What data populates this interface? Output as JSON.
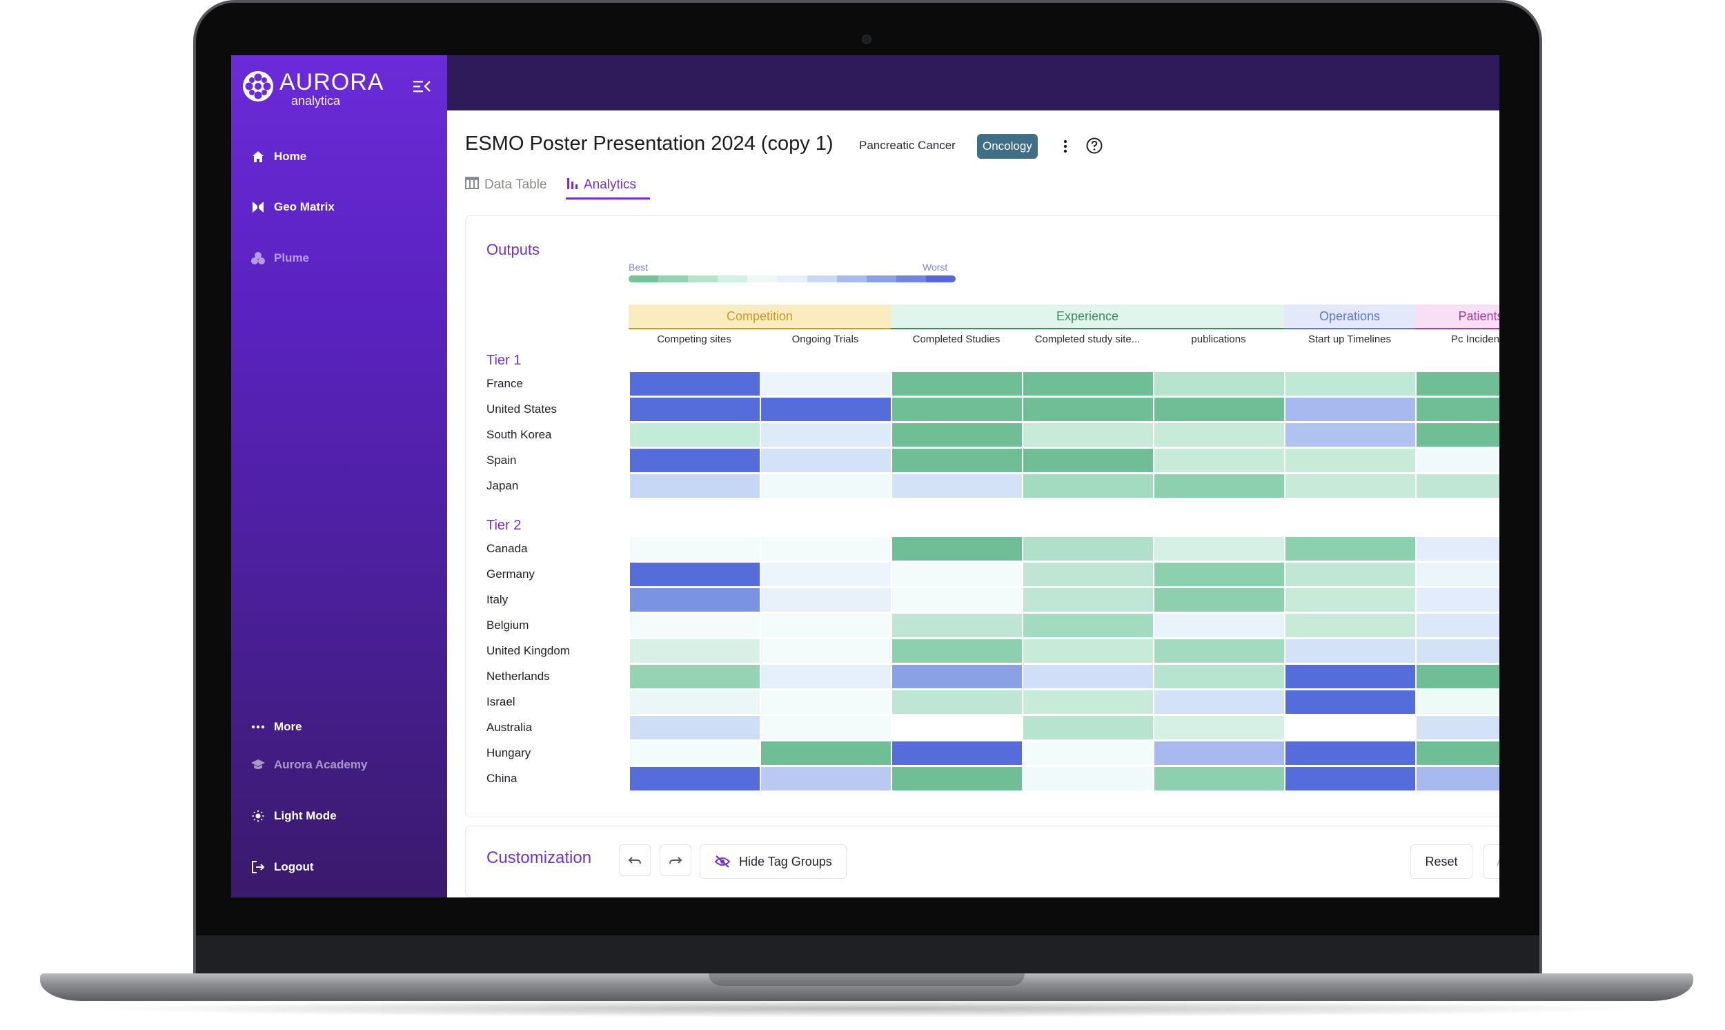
{
  "app": {
    "logo_word": "AURORA",
    "logo_sub": "analytica"
  },
  "sidebar": {
    "items": [
      {
        "label": "Home",
        "icon": "home-icon"
      },
      {
        "label": "Geo Matrix",
        "icon": "geo-matrix-icon"
      },
      {
        "label": "Plume",
        "icon": "plume-icon"
      }
    ],
    "bottom_items": [
      {
        "label": "More",
        "icon": "more-dots-icon"
      },
      {
        "label": "Aurora Academy",
        "icon": "graduation-cap-icon"
      },
      {
        "label": "Light Mode",
        "icon": "sun-icon"
      },
      {
        "label": "Logout",
        "icon": "logout-icon"
      }
    ]
  },
  "header": {
    "title": "ESMO Poster Presentation 2024 (copy 1)",
    "tag_text": "Pancreatic Cancer",
    "tag_badge": "Oncology"
  },
  "tabs": [
    {
      "label": "Data Table",
      "active": false
    },
    {
      "label": "Analytics",
      "active": true
    }
  ],
  "outputs": {
    "title": "Outputs",
    "legend_best": "Best",
    "legend_worst": "Worst",
    "legend_colors": [
      "#74c39b",
      "#93d3b4",
      "#b5e4cd",
      "#d3f1e3",
      "#eef9f6",
      "#e6effa",
      "#c9d9f5",
      "#a7bcee",
      "#8aa1e6",
      "#6f86e0",
      "#5468da"
    ],
    "groups": [
      {
        "label": "Competition",
        "bg": "#fbecc0",
        "fg": "#c89a2c",
        "span": 2
      },
      {
        "label": "Experience",
        "bg": "#e0f6ec",
        "fg": "#3c8a64",
        "span": 3
      },
      {
        "label": "Operations",
        "bg": "#e4e8fb",
        "fg": "#5b78d8",
        "span": 1
      },
      {
        "label": "Patients",
        "bg": "#f8dff5",
        "fg": "#a23f98",
        "span": 1
      }
    ],
    "columns": [
      "Competing sites",
      "Ongoing Trials",
      "Completed Studies",
      "Completed study site...",
      "publications",
      "Start up Timelines",
      "Pc Incidence"
    ],
    "tiers": [
      {
        "title": "Tier 1",
        "rows": [
          {
            "name": "France",
            "cells": [
              "#556ddb",
              "#ebf5fb",
              "#6fbe96",
              "#6fbe96",
              "#b7e4cf",
              "#bfe8d6",
              "#6fbe96"
            ]
          },
          {
            "name": "United States",
            "cells": [
              "#556ddb",
              "#556ddb",
              "#6fbe96",
              "#6fbe96",
              "#6fbe96",
              "#a7b9ee",
              "#6fbe96"
            ]
          },
          {
            "name": "South Korea",
            "cells": [
              "#c3ecd8",
              "#ddeaf8",
              "#6fbe96",
              "#c7ead9",
              "#c7ead9",
              "#b0c2f0",
              "#6fbe96"
            ]
          },
          {
            "name": "Spain",
            "cells": [
              "#556ddb",
              "#d3e2f7",
              "#6fbe96",
              "#6fbe96",
              "#c7ead9",
              "#c7ead9",
              "#f1fafb"
            ]
          },
          {
            "name": "Japan",
            "cells": [
              "#c5d7f4",
              "#f1fafb",
              "#d4e2f8",
              "#a3dbc0",
              "#8dd0af",
              "#c7ead9",
              "#c0e6d5"
            ]
          }
        ]
      },
      {
        "title": "Tier 2",
        "rows": [
          {
            "name": "Canada",
            "cells": [
              "#f3fbfb",
              "#f3fbfb",
              "#6fbe96",
              "#b0e0c9",
              "#d6f0e5",
              "#8dd0af",
              "#e2ecfa"
            ]
          },
          {
            "name": "Germany",
            "cells": [
              "#556ddb",
              "#ecf5fb",
              "#f3fbfb",
              "#bfe6d4",
              "#8dd0af",
              "#c0e6d5",
              "#ecf6fa"
            ]
          },
          {
            "name": "Italy",
            "cells": [
              "#7a93e3",
              "#e8f1fa",
              "#f3fbfb",
              "#bfe6d4",
              "#8dd0af",
              "#c7ead9",
              "#e2ecfa"
            ]
          },
          {
            "name": "Belgium",
            "cells": [
              "#f3fbfb",
              "#f3fbfb",
              "#bfe6d4",
              "#a3dbc0",
              "#e8f3fa",
              "#c7ead9",
              "#dce8f9"
            ]
          },
          {
            "name": "United Kingdom",
            "cells": [
              "#d8f0e5",
              "#f3fbfb",
              "#8dd0af",
              "#c7ead9",
              "#a3dbc0",
              "#d4e2f8",
              "#d4e2f8"
            ]
          },
          {
            "name": "Netherlands",
            "cells": [
              "#96d3b5",
              "#e6f0fa",
              "#8aa1e6",
              "#d1def7",
              "#b7e4cf",
              "#556ddb",
              "#6fbe96"
            ]
          },
          {
            "name": "Israel",
            "cells": [
              "#eaf7f6",
              "#f3fbfb",
              "#bfe6d4",
              "#c7ead9",
              "#d4e2f8",
              "#556ddb",
              "#eefaf6"
            ]
          },
          {
            "name": "Australia",
            "cells": [
              "#cfdef7",
              "#f3fbfb",
              "#ffffff",
              "#b7e4cf",
              "#d6f0e5",
              "#ffffff",
              "#d4e2f8"
            ]
          },
          {
            "name": "Hungary",
            "cells": [
              "#f3fbfb",
              "#6fbe96",
              "#556ddb",
              "#f3fbfb",
              "#a7b9ee",
              "#556ddb",
              "#6fbe96"
            ]
          },
          {
            "name": "China",
            "cells": [
              "#556ddb",
              "#b9c9f2",
              "#6fbe96",
              "#f1fafb",
              "#8dd0af",
              "#556ddb",
              "#a7b9ee"
            ]
          }
        ]
      }
    ]
  },
  "customization": {
    "title": "Customization",
    "hide_tags_label": "Hide Tag Groups",
    "reset_label": "Reset",
    "apply_label": "Ap"
  }
}
